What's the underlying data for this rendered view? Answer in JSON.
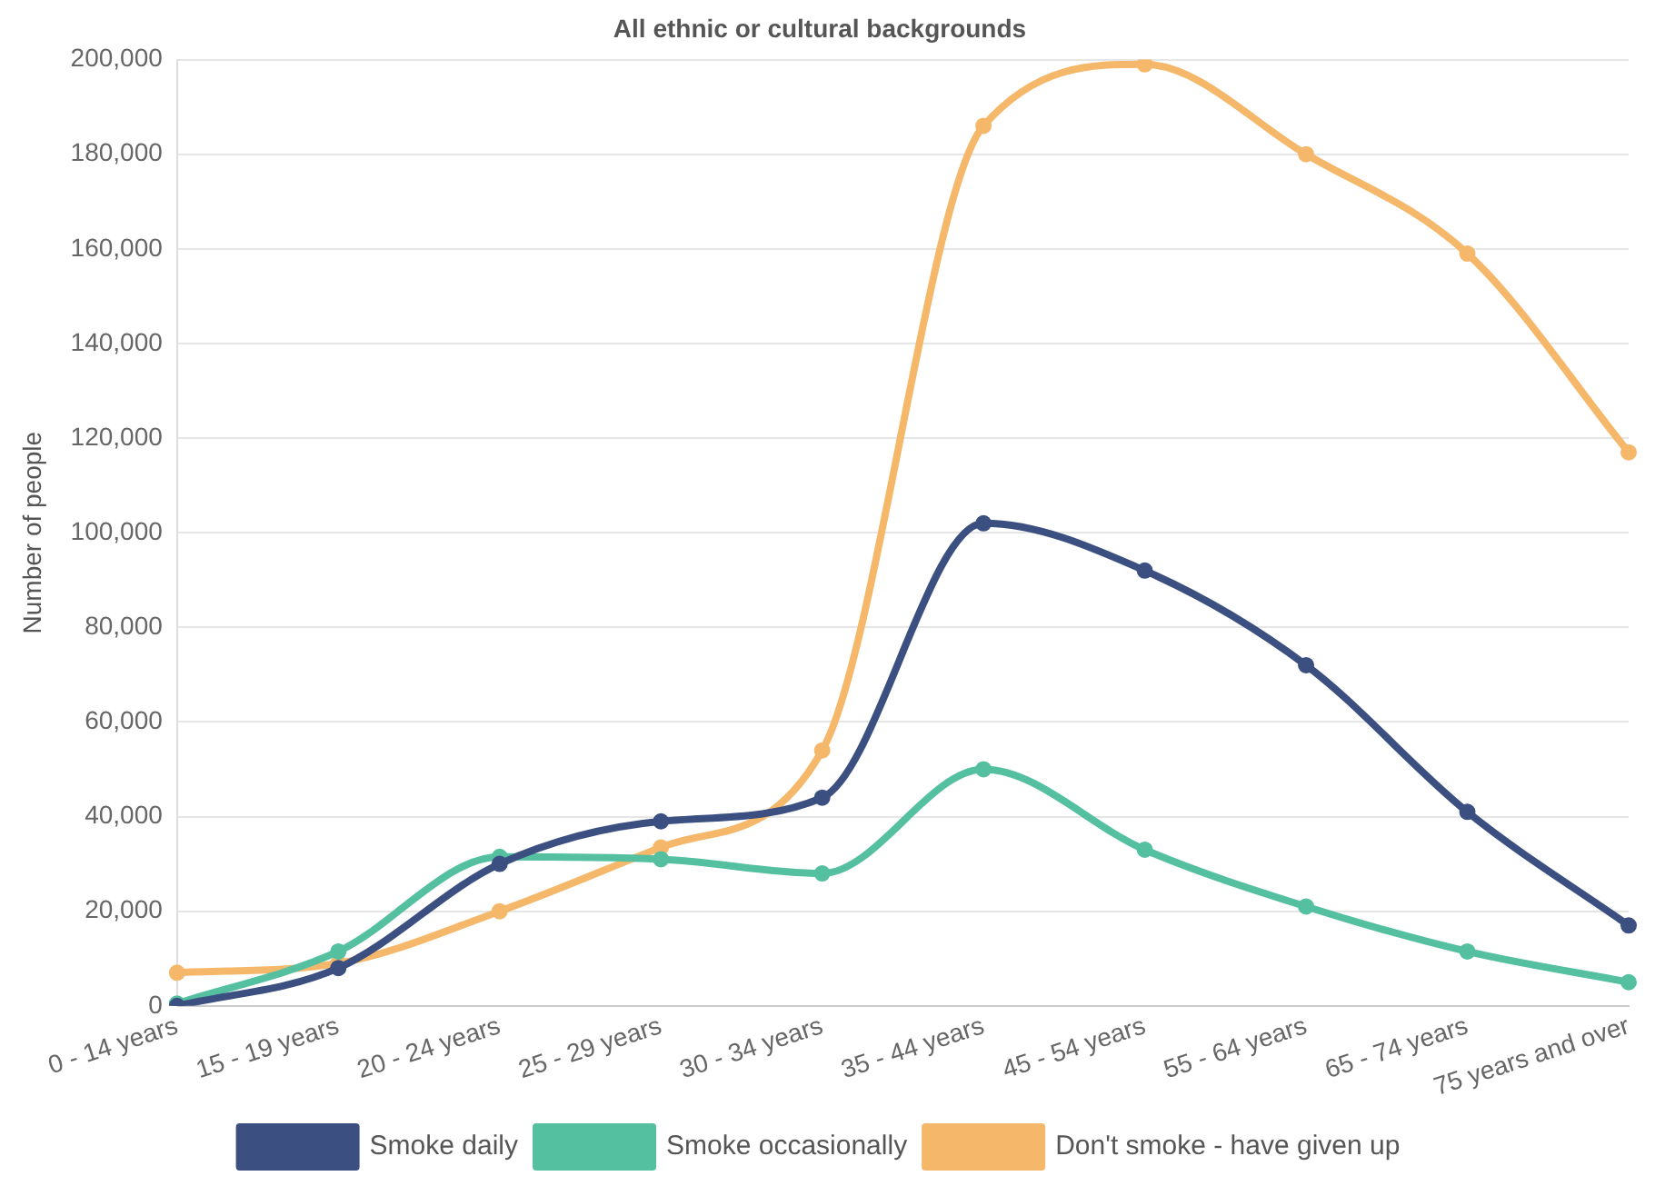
{
  "chart_data": {
    "type": "line",
    "title": "All ethnic or cultural backgrounds",
    "ylabel": "Number of people",
    "categories": [
      "0 - 14 years",
      "15 - 19 years",
      "20 - 24 years",
      "25 - 29 years",
      "30 - 34 years",
      "35 - 44 years",
      "45 - 54 years",
      "55 - 64 years",
      "65 - 74 years",
      "75 years and over"
    ],
    "series": [
      {
        "name": "Smoke daily",
        "color": "#3b4f80",
        "values": [
          0,
          8000,
          30000,
          39000,
          44000,
          102000,
          92000,
          72000,
          41000,
          17000
        ]
      },
      {
        "name": "Smoke occasionally",
        "color": "#54c0a0",
        "values": [
          500,
          11500,
          31500,
          31000,
          28000,
          50000,
          33000,
          21000,
          11500,
          5000
        ]
      },
      {
        "name": "Don't smoke - have given up",
        "color": "#f5b86a",
        "values": [
          7000,
          9000,
          20000,
          33500,
          54000,
          186000,
          199000,
          180000,
          159000,
          117000
        ]
      }
    ],
    "ylim": [
      0,
      200000
    ],
    "yticks": [
      0,
      {
        "value": 20000,
        "label": "20,000"
      },
      {
        "value": 40000,
        "label": "40,000"
      },
      {
        "value": 60000,
        "label": "60,000"
      },
      {
        "value": 80000,
        "label": "80,000"
      },
      {
        "value": 100000,
        "label": "100,000"
      },
      {
        "value": 120000,
        "label": "120,000"
      },
      {
        "value": 140000,
        "label": "140,000"
      },
      {
        "value": 160000,
        "label": "160,000"
      },
      {
        "value": 180000,
        "label": "180,000"
      },
      {
        "value": 200000,
        "label": "200,000"
      }
    ],
    "grid": "y",
    "legend": "bottom",
    "marker": "circle",
    "line_style": "solid"
  }
}
